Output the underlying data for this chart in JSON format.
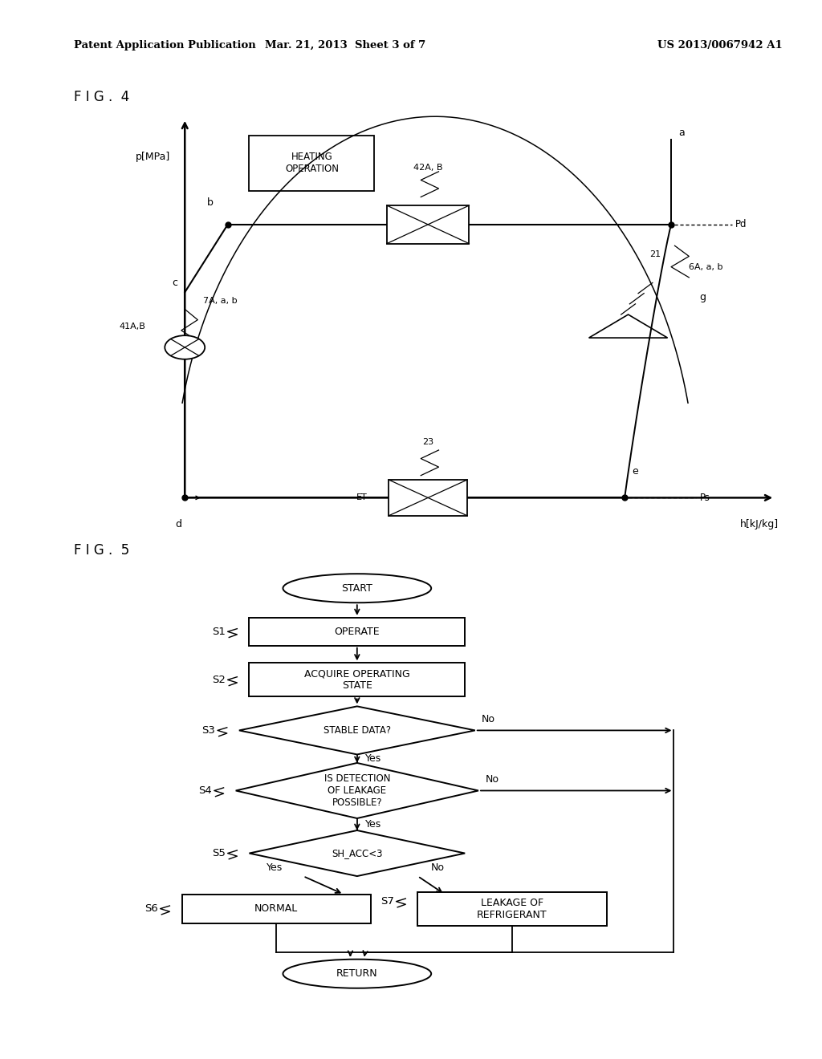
{
  "header_left": "Patent Application Publication",
  "header_mid": "Mar. 21, 2013  Sheet 3 of 7",
  "header_right": "US 2013/0067942 A1",
  "fig4_title": "F I G .  4",
  "fig5_title": "F I G .  5",
  "fig4_box_label": "HEATING\nOPERATION",
  "fig4_ylabel": "p[MPa]",
  "fig4_xlabel": "h[kJ/kg]",
  "background_color": "#ffffff"
}
